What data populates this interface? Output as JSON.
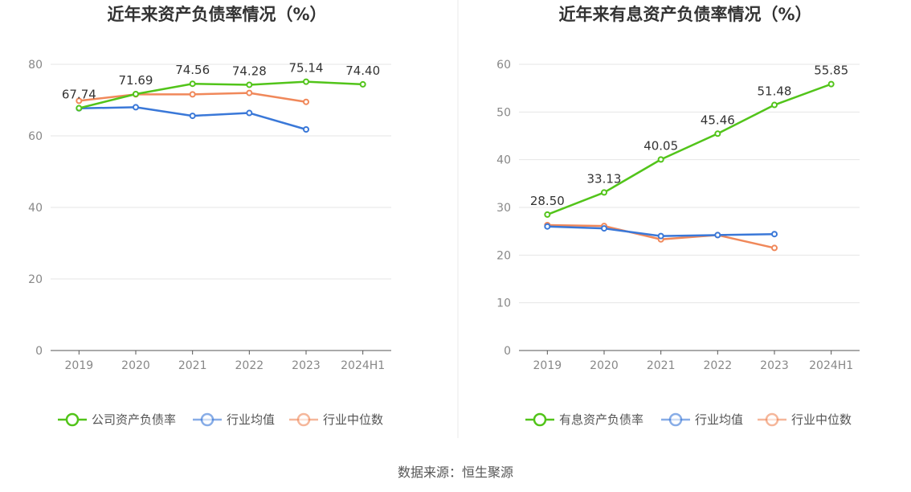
{
  "source_text": "数据来源：恒生聚源",
  "chart_data": [
    {
      "type": "line",
      "title": "近年来资产负债率情况（%）",
      "categories": [
        "2019",
        "2020",
        "2021",
        "2022",
        "2023",
        "2024H1"
      ],
      "ylim": [
        0,
        80
      ],
      "yticks": [
        0,
        20,
        40,
        60,
        80
      ],
      "grid": true,
      "legend_position": "bottom",
      "series": [
        {
          "name": "公司资产负债率",
          "color": "#52c41a",
          "values": [
            67.74,
            71.69,
            74.56,
            74.28,
            75.14,
            74.4
          ],
          "labels": [
            "67.74",
            "71.69",
            "74.56",
            "74.28",
            "75.14",
            "74.40"
          ]
        },
        {
          "name": "行业均值",
          "color": "#3a78d8",
          "values": [
            67.7,
            68.0,
            65.6,
            66.4,
            61.8,
            null
          ]
        },
        {
          "name": "行业中位数",
          "color": "#f0885a",
          "values": [
            69.8,
            71.6,
            71.6,
            72.0,
            69.5,
            null
          ]
        }
      ]
    },
    {
      "type": "line",
      "title": "近年来有息资产负债率情况（%）",
      "categories": [
        "2019",
        "2020",
        "2021",
        "2022",
        "2023",
        "2024H1"
      ],
      "ylim": [
        0,
        60
      ],
      "yticks": [
        0,
        10,
        20,
        30,
        40,
        50,
        60
      ],
      "grid": true,
      "legend_position": "bottom",
      "series": [
        {
          "name": "有息资产负债率",
          "color": "#52c41a",
          "values": [
            28.5,
            33.13,
            40.05,
            45.46,
            51.48,
            55.85
          ],
          "labels": [
            "28.50",
            "33.13",
            "40.05",
            "45.46",
            "51.48",
            "55.85"
          ]
        },
        {
          "name": "行业均值",
          "color": "#3a78d8",
          "values": [
            26.0,
            25.6,
            24.0,
            24.2,
            24.4,
            null
          ]
        },
        {
          "name": "行业中位数",
          "color": "#f0885a",
          "values": [
            26.3,
            26.1,
            23.3,
            24.2,
            21.5,
            null
          ]
        }
      ]
    }
  ]
}
